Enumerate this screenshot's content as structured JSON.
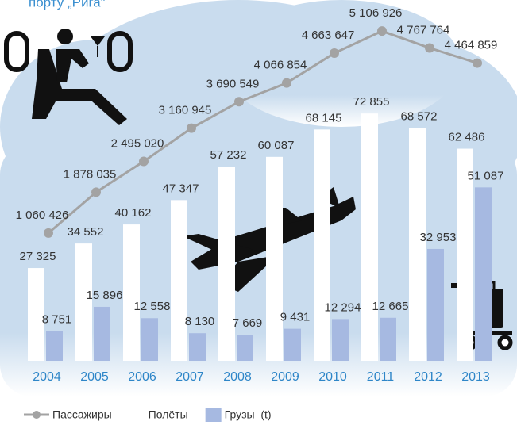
{
  "chart_data": {
    "type": "bar",
    "title": "порту „Рига“",
    "categories": [
      "2004",
      "2005",
      "2006",
      "2007",
      "2008",
      "2009",
      "2010",
      "2011",
      "2012",
      "2013"
    ],
    "ylim": [
      0,
      100000
    ],
    "y2lim": [
      -1500000,
      5300000
    ],
    "series": [
      {
        "name": "Пассажиры",
        "type": "line",
        "axis": "y2",
        "color": "#a3a3a3",
        "values": [
          1060426,
          1878035,
          2495020,
          3160945,
          3690549,
          4066854,
          4663647,
          5106926,
          4767764,
          4464859
        ],
        "value_labels": [
          "1 060 426",
          "1 878 035",
          "2 495 020",
          "3 160 945",
          "3 690 549",
          "4 066 854",
          "4 663 647",
          "5 106 926",
          "4 767 764",
          "4 464 859"
        ]
      },
      {
        "name": "Полёты",
        "type": "bar",
        "color": "#ffffff",
        "values": [
          27325,
          34552,
          40162,
          47347,
          57232,
          60087,
          68145,
          72855,
          68572,
          62486
        ],
        "value_labels": [
          "27 325",
          "34 552",
          "40 162",
          "47 347",
          "57 232",
          "60 087",
          "68 145",
          "72 855",
          "68 572",
          "62 486"
        ]
      },
      {
        "name": "Грузы  (t)",
        "type": "bar",
        "color": "#a6b9e1",
        "values": [
          8751,
          15896,
          12558,
          8130,
          7669,
          9431,
          12294,
          12665,
          32953,
          51087
        ],
        "value_labels": [
          "8 751",
          "15 896",
          "12 558",
          "8 130",
          "7 669",
          "9 431",
          "12 294",
          "12 665",
          "32 953",
          "51 087"
        ]
      }
    ]
  }
}
